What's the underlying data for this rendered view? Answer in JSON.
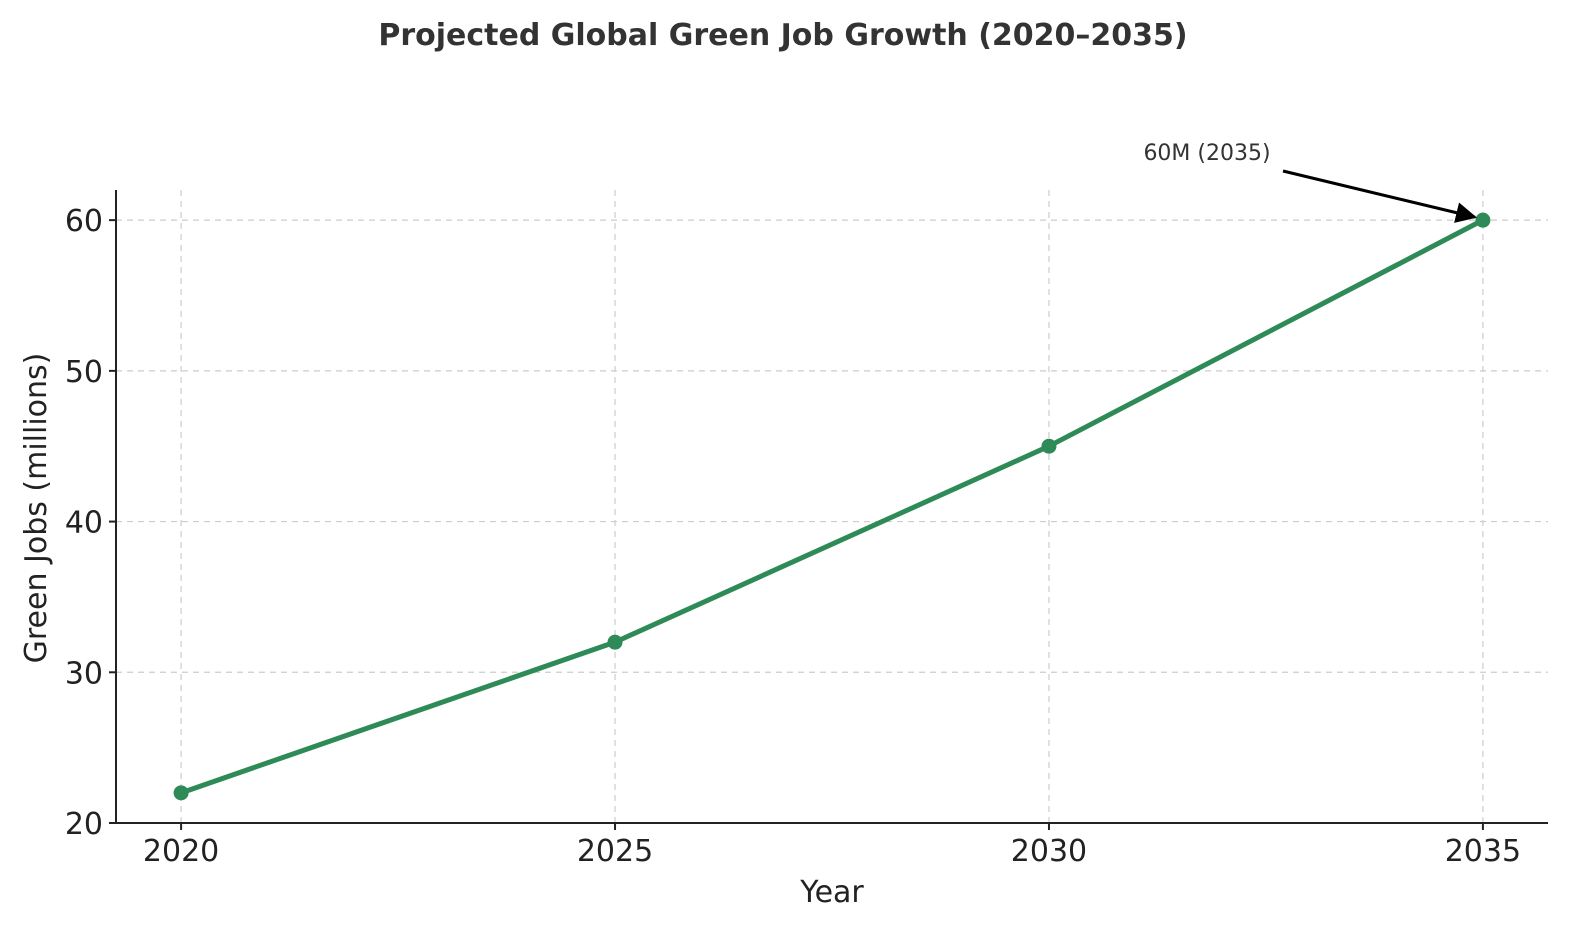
{
  "chart_data": {
    "type": "line",
    "title": "Projected Global Green Job Growth (2020–2035)",
    "xlabel": "Year",
    "ylabel": "Green Jobs (millions)",
    "x": [
      2020,
      2025,
      2030,
      2035
    ],
    "x_tick_labels": [
      "2020",
      "2025",
      "2030",
      "2035"
    ],
    "xlim": [
      2019.25,
      2035.75
    ],
    "ylim": [
      20,
      62
    ],
    "y_ticks": [
      20,
      30,
      40,
      50,
      60
    ],
    "y_tick_labels": [
      "20",
      "30",
      "40",
      "50",
      "60"
    ],
    "grid": true,
    "series": [
      {
        "values": [
          22,
          32,
          45,
          60
        ],
        "color": "#2e8b57",
        "marker": "circle"
      }
    ],
    "annotation": {
      "text": "60M (2035)",
      "target": {
        "x": 2035,
        "y": 60
      },
      "arrow_color": "#000000"
    }
  }
}
